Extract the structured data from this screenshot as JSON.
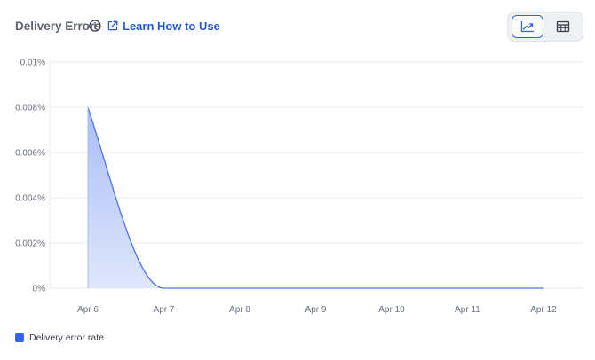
{
  "header": {
    "title": "Delivery Errors",
    "learn_link": "Learn How to Use",
    "info_icon": "info-icon",
    "external_icon": "external-link-icon"
  },
  "view_toggle": {
    "chart_icon": "line-chart-icon",
    "table_icon": "table-icon",
    "selected": "chart"
  },
  "colors": {
    "series_line": "#4a74ee",
    "series_fill_top": "#a9bdf6",
    "series_fill_bottom": "#dfe6fc",
    "legend_swatch": "#3563e9",
    "grid": "#e9ebef"
  },
  "chart_data": {
    "type": "area",
    "title": "",
    "xlabel": "",
    "ylabel": "",
    "x": [
      "Apr 6",
      "Apr 7",
      "Apr 8",
      "Apr 9",
      "Apr 10",
      "Apr 11",
      "Apr 12"
    ],
    "yticks": [
      "0%",
      "0.002%",
      "0.004%",
      "0.006%",
      "0.008%",
      "0.01%"
    ],
    "ylim": [
      0,
      0.01
    ],
    "grid": true,
    "legend_position": "bottom-left",
    "series": [
      {
        "name": "Delivery error rate",
        "values": [
          0.008,
          0,
          0,
          0,
          0,
          0,
          0
        ]
      }
    ]
  }
}
